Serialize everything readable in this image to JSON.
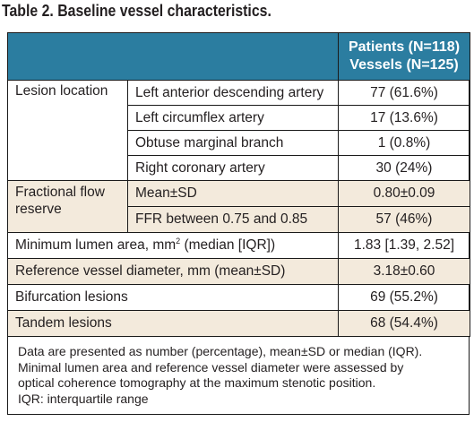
{
  "title": "Table 2. Baseline vessel characteristics.",
  "header": {
    "line1": "Patients (N=118)",
    "line2": "Vessels (N=125)"
  },
  "lesion_location": {
    "label": "Lesion location",
    "rows": [
      {
        "name": "Left anterior descending artery",
        "value": "77 (61.6%)"
      },
      {
        "name": "Left circumflex artery",
        "value": "17 (13.6%)"
      },
      {
        "name": "Obtuse marginal branch",
        "value": "1 (0.8%)"
      },
      {
        "name": "Right coronary artery",
        "value": "30 (24%)"
      }
    ]
  },
  "ffr": {
    "label_line1": "Fractional flow",
    "label_line2": "reserve",
    "rows": [
      {
        "name": "Mean±SD",
        "value": "0.80±0.09"
      },
      {
        "name": "FFR between 0.75 and 0.85",
        "value": "57 (46%)"
      }
    ]
  },
  "mla": {
    "label_pre": "Minimum lumen area, mm",
    "label_sup": "2",
    "label_post": " (median [IQR])",
    "value": "1.83 [1.39, 2.52]"
  },
  "rvd": {
    "label": "Reference vessel diameter, mm (mean±SD)",
    "value": "3.18±0.60"
  },
  "bifurcation": {
    "label": "Bifurcation lesions",
    "value": "69 (55.2%)"
  },
  "tandem": {
    "label": "Tandem lesions",
    "value": "68 (54.4%)"
  },
  "footnote": {
    "line1": "Data are presented as number (percentage), mean±SD or median (IQR).",
    "line2": "Minimal lumen area and reference vessel diameter were assessed by",
    "line3": "optical coherence tomography at the maximum stenotic position.",
    "line4": "IQR: interquartile range"
  },
  "colors": {
    "header_bg": "#2b7da0",
    "tint_bg": "#f3eadc",
    "border": "#1a1a1a"
  }
}
